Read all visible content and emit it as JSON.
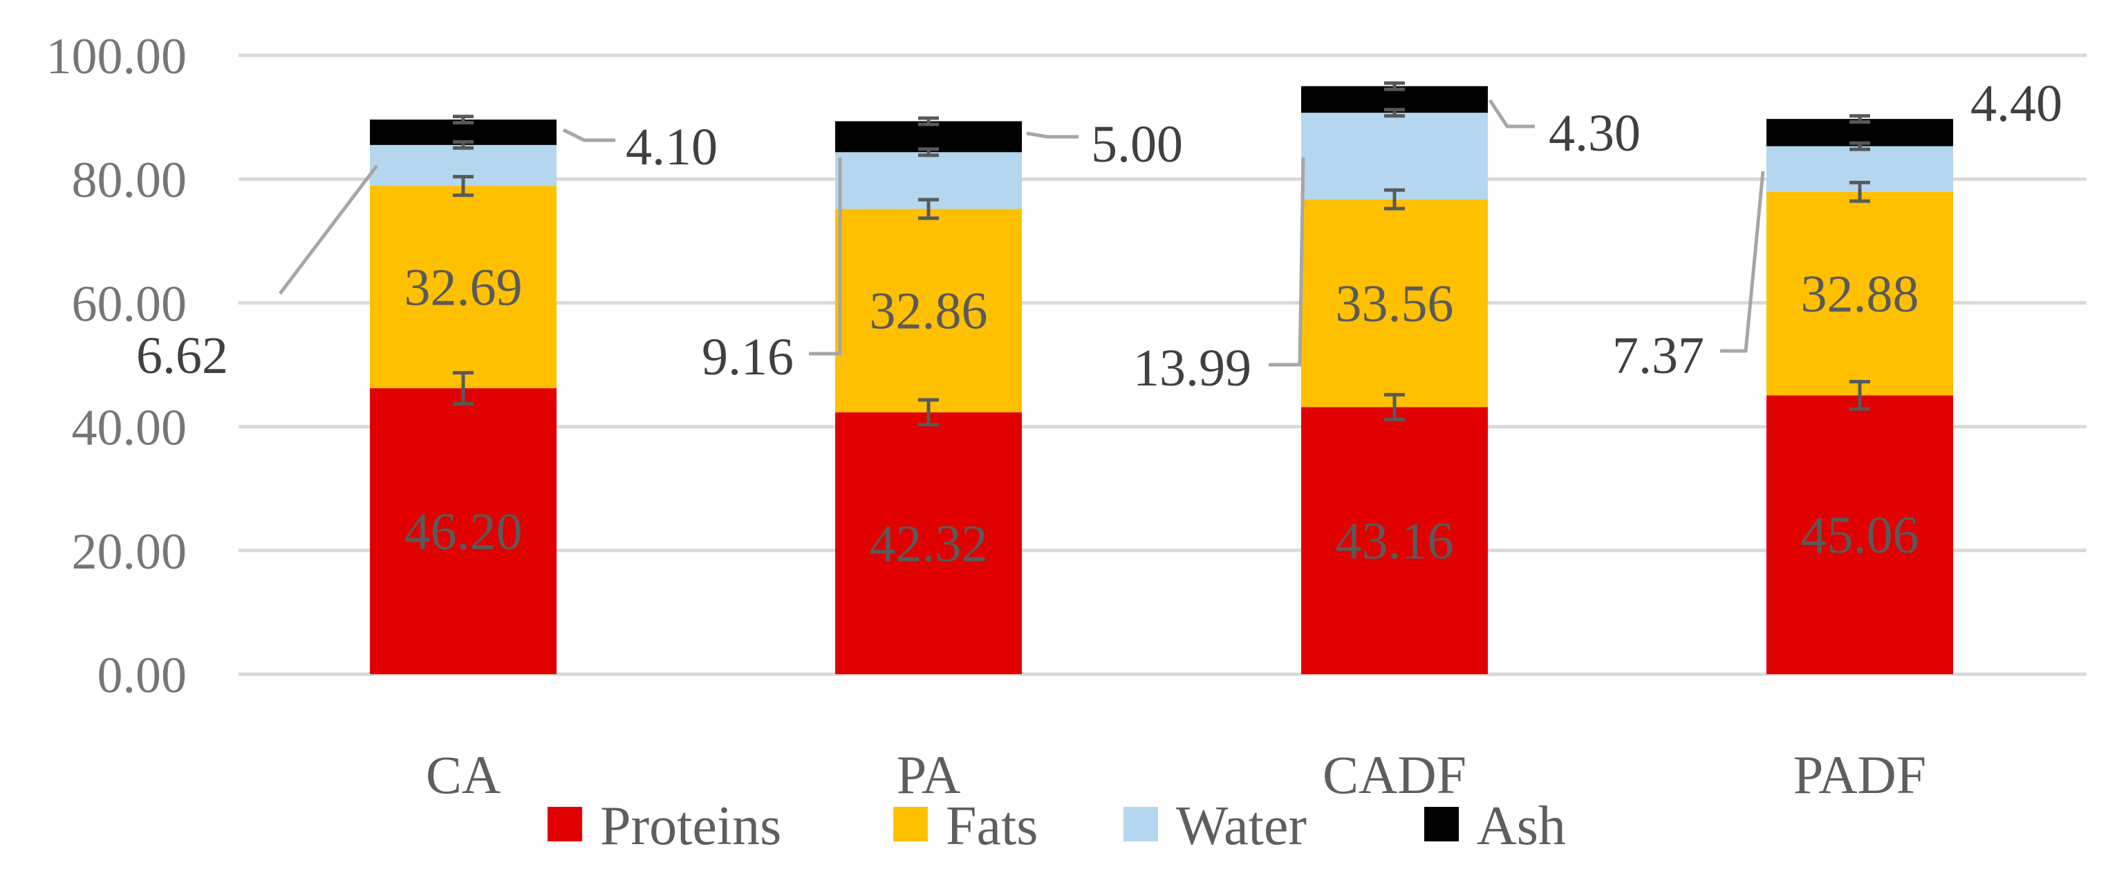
{
  "chart_data": {
    "type": "bar",
    "stacked": true,
    "title": "",
    "xlabel": "",
    "ylabel": "",
    "categories": [
      "CA",
      "PA",
      "CADF",
      "PADF"
    ],
    "ylim": [
      0,
      100
    ],
    "yticks": [
      0,
      20,
      40,
      60,
      80,
      100
    ],
    "ytick_labels": [
      "0.00",
      "20.00",
      "40.00",
      "60.00",
      "80.00",
      "100.00"
    ],
    "grid": true,
    "legend_position": "bottom",
    "series": [
      {
        "name": "Proteins",
        "color": "#e00000",
        "values": [
          46.2,
          42.32,
          43.16,
          45.06
        ],
        "labels": [
          "46.20",
          "42.32",
          "43.16",
          "45.06"
        ],
        "error": [
          2.5,
          2.0,
          2.0,
          2.2
        ]
      },
      {
        "name": "Fats",
        "color": "#ffc000",
        "values": [
          32.69,
          32.86,
          33.56,
          32.88
        ],
        "labels": [
          "32.69",
          "32.86",
          "33.56",
          "32.88"
        ],
        "error": [
          1.5,
          1.5,
          1.5,
          1.5
        ]
      },
      {
        "name": "Water",
        "color": "#b4d7ef",
        "values": [
          6.62,
          9.16,
          13.99,
          7.37
        ],
        "labels": [
          "6.62",
          "9.16",
          "13.99",
          "7.37"
        ],
        "error": [
          0.5,
          0.5,
          0.5,
          0.5
        ]
      },
      {
        "name": "Ash",
        "color": "#000000",
        "values": [
          4.1,
          5.0,
          4.3,
          4.4
        ],
        "labels": [
          "4.10",
          "5.00",
          "4.30",
          "4.40"
        ],
        "error": [
          0.5,
          0.5,
          0.5,
          0.5
        ]
      }
    ]
  }
}
